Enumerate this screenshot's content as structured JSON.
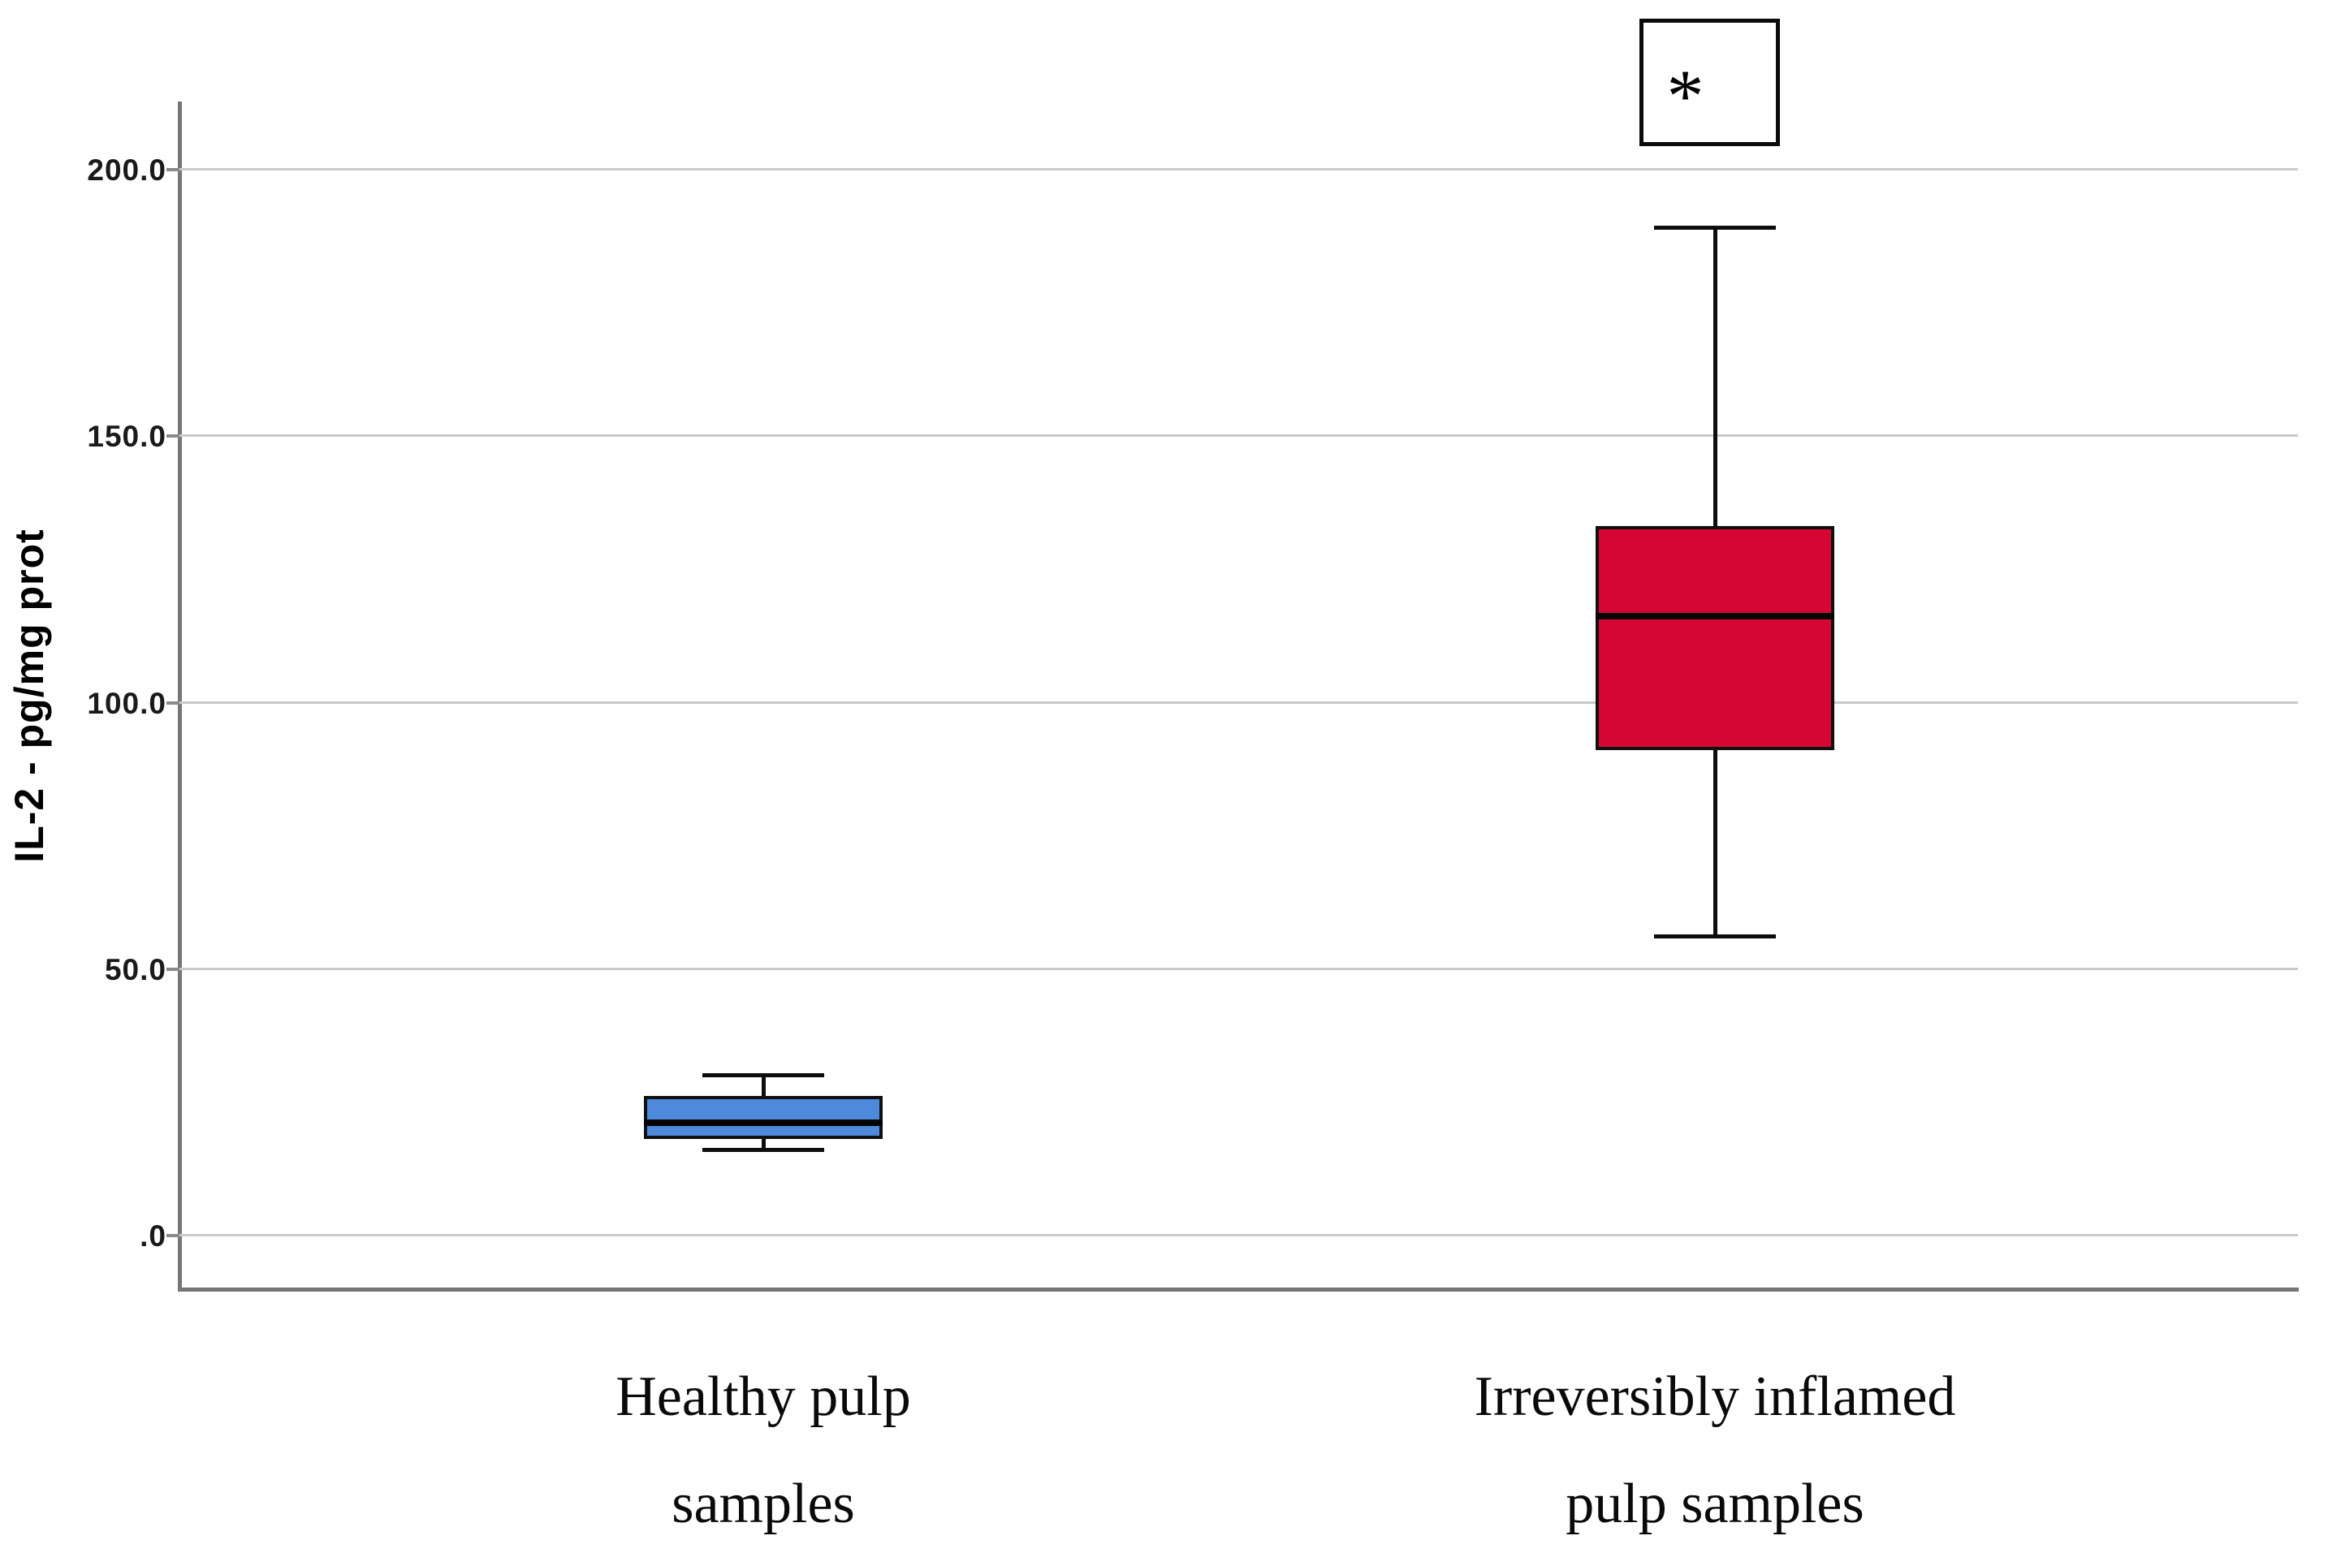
{
  "chart_data": {
    "type": "boxplot",
    "title": "",
    "ylabel": "IL-2 - pg/mg prot",
    "xlabel": "",
    "ylim": [
      -12,
      213
    ],
    "grid": "horizontal",
    "legend_position": "none",
    "y_ticks": [
      {
        "value": 0,
        "label": ".0"
      },
      {
        "value": 50,
        "label": "50.0"
      },
      {
        "value": 100,
        "label": "100.0"
      },
      {
        "value": 150,
        "label": "150.0"
      },
      {
        "value": 200,
        "label": "200.0"
      }
    ],
    "categories": [
      "Healthy pulp samples",
      "Irreversibly inflamed pulp samples"
    ],
    "series": [
      {
        "name": "Healthy pulp samples",
        "label_lines": [
          "Healthy pulp",
          "samples"
        ],
        "color": "#4F89DC",
        "min": 16,
        "q1": 18,
        "median": 21,
        "q3": 26,
        "max": 30
      },
      {
        "name": "Irreversibly inflamed pulp samples",
        "label_lines": [
          "Irreversibly inflamed",
          "pulp samples"
        ],
        "color": "#D60634",
        "min": 56,
        "q1": 91,
        "median": 116,
        "q3": 133,
        "max": 189
      }
    ],
    "annotation": {
      "text": "*",
      "meaning": "significance marker",
      "applies_to": "Irreversibly inflamed pulp samples"
    }
  }
}
